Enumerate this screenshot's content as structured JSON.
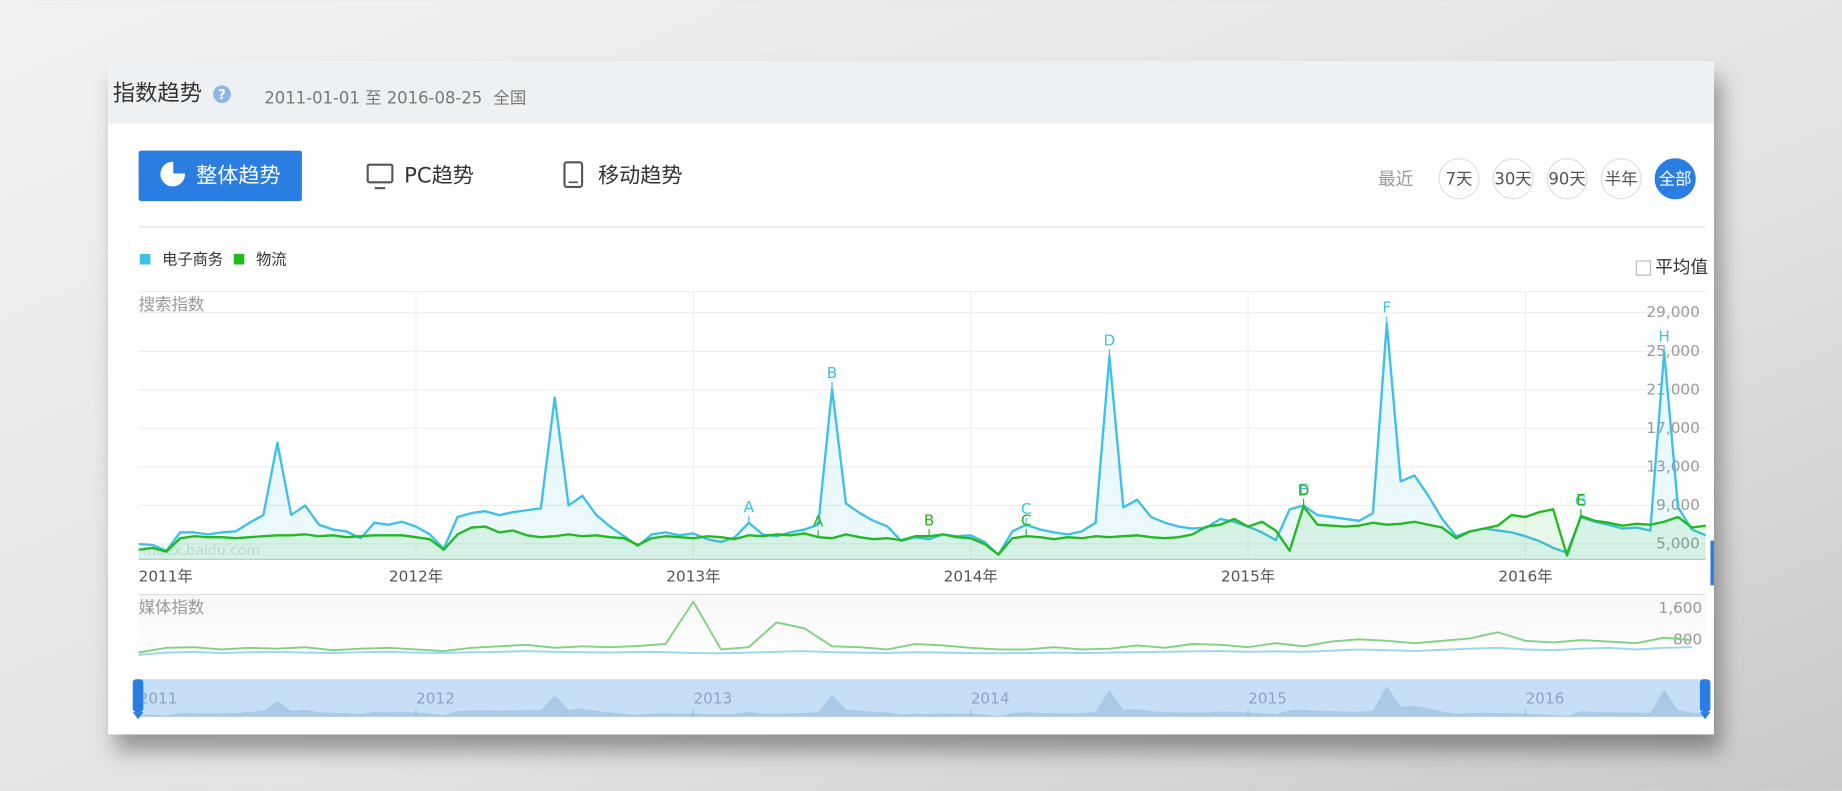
{
  "header": {
    "title": "指数趋势",
    "date_range": "2011-01-01 至 2016-08-25",
    "region": "全国"
  },
  "tabs": {
    "items": [
      "整体趋势",
      "PC趋势",
      "移动趋势"
    ],
    "active": 0
  },
  "range": {
    "label": "最近",
    "items": [
      "7天",
      "30天",
      "90天",
      "半年",
      "全部"
    ],
    "active": 4
  },
  "average_toggle": "平均值",
  "watermark": "index.baidu.com",
  "navigator": {
    "labels": [
      "2011",
      "2012",
      "2013",
      "2014",
      "2015",
      "2016"
    ]
  },
  "chart_data": [
    {
      "type": "line",
      "y_label": "搜索指数",
      "legend": "top-left",
      "grid": true,
      "x": [
        2011,
        2011.05,
        2011.1,
        2011.15,
        2011.2,
        2011.25,
        2011.3,
        2011.35,
        2011.4,
        2011.45,
        2011.5,
        2011.55,
        2011.6,
        2011.65,
        2011.7,
        2011.75,
        2011.8,
        2011.85,
        2011.9,
        2011.95,
        2012,
        2012.05,
        2012.1,
        2012.15,
        2012.2,
        2012.25,
        2012.3,
        2012.35,
        2012.4,
        2012.45,
        2012.5,
        2012.55,
        2012.6,
        2012.65,
        2012.7,
        2012.75,
        2012.8,
        2012.85,
        2012.9,
        2012.95,
        2013,
        2013.05,
        2013.1,
        2013.15,
        2013.2,
        2013.25,
        2013.3,
        2013.35,
        2013.4,
        2013.45,
        2013.5,
        2013.55,
        2013.6,
        2013.65,
        2013.7,
        2013.75,
        2013.8,
        2013.85,
        2013.9,
        2013.95,
        2014,
        2014.05,
        2014.1,
        2014.15,
        2014.2,
        2014.25,
        2014.3,
        2014.35,
        2014.4,
        2014.45,
        2014.5,
        2014.55,
        2014.6,
        2014.65,
        2014.7,
        2014.75,
        2014.8,
        2014.85,
        2014.9,
        2014.95,
        2015,
        2015.05,
        2015.1,
        2015.15,
        2015.2,
        2015.25,
        2015.3,
        2015.35,
        2015.4,
        2015.45,
        2015.5,
        2015.55,
        2015.6,
        2015.65,
        2015.7,
        2015.75,
        2015.8,
        2015.85,
        2015.9,
        2015.95,
        2016,
        2016.05,
        2016.1,
        2016.15,
        2016.2,
        2016.25,
        2016.3,
        2016.35,
        2016.4,
        2016.45,
        2016.5,
        2016.55,
        2016.6,
        2016.65
      ],
      "series": [
        {
          "name": "电子商务",
          "color": "#3ec0e8",
          "values": [
            5000,
            4900,
            4300,
            6200,
            6200,
            6000,
            6200,
            6300,
            7200,
            8000,
            15500,
            8000,
            9000,
            7000,
            6500,
            6300,
            5600,
            7200,
            7000,
            7300,
            6800,
            6000,
            4500,
            7800,
            8200,
            8400,
            8000,
            8300,
            8500,
            8700,
            20200,
            9000,
            10000,
            8000,
            6800,
            5800,
            4800,
            6000,
            6200,
            5900,
            6100,
            5500,
            5200,
            5700,
            7200,
            6000,
            5800,
            6200,
            6500,
            7000,
            21100,
            9200,
            8200,
            7400,
            6800,
            5300,
            5700,
            5500,
            6000,
            5800,
            5900,
            5200,
            3900,
            6300,
            7000,
            6500,
            6200,
            6000,
            6300,
            7200,
            24500,
            8800,
            9600,
            7800,
            7200,
            6800,
            6600,
            6700,
            7600,
            7300,
            6800,
            6200,
            5400,
            8600,
            9000,
            8000,
            7800,
            7600,
            7400,
            8200,
            27900,
            11500,
            12100,
            10000,
            7600,
            5800,
            6300,
            6600,
            6400,
            6200,
            5800,
            5300,
            4600,
            4100,
            7800,
            7300,
            7000,
            6600,
            6700,
            6400,
            24900,
            8800,
            6500,
            5900
          ],
          "annotations": [
            {
              "text": "A",
              "x": 2013.2
            },
            {
              "text": "B",
              "x": 2013.5
            },
            {
              "text": "C",
              "x": 2014.2
            },
            {
              "text": "D",
              "x": 2014.5
            },
            {
              "text": "E",
              "x": 2015.2
            },
            {
              "text": "F",
              "x": 2015.5
            },
            {
              "text": "G",
              "x": 2016.2
            },
            {
              "text": "H",
              "x": 2016.5
            }
          ]
        },
        {
          "name": "物流",
          "color": "#22b922",
          "values": [
            4400,
            4600,
            4200,
            5600,
            5800,
            5700,
            5700,
            5600,
            5700,
            5800,
            5900,
            5900,
            6000,
            5800,
            5900,
            5700,
            5800,
            5900,
            5900,
            5900,
            5700,
            5500,
            4400,
            6000,
            6700,
            6800,
            6200,
            6400,
            5900,
            5700,
            5800,
            6000,
            5800,
            5900,
            5700,
            5600,
            4900,
            5600,
            5800,
            5700,
            5600,
            5800,
            5700,
            5500,
            5900,
            5800,
            6000,
            5900,
            6100,
            5700,
            5600,
            6000,
            5700,
            5500,
            5600,
            5400,
            5800,
            5800,
            6000,
            5700,
            5600,
            5000,
            3900,
            5600,
            5800,
            5700,
            5500,
            5700,
            5600,
            5800,
            5700,
            5800,
            5900,
            5700,
            5600,
            5700,
            6000,
            6800,
            7000,
            7600,
            6800,
            7300,
            6400,
            4300,
            8900,
            7000,
            6900,
            6800,
            6900,
            7200,
            7000,
            7100,
            7300,
            7000,
            6700,
            5600,
            6300,
            6600,
            6900,
            8000,
            7800,
            8300,
            8600,
            3800,
            7900,
            7400,
            7200,
            6900,
            7100,
            7000,
            7300,
            7800,
            6700,
            6900
          ],
          "annotations": [
            {
              "text": "A",
              "x": 2013.45
            },
            {
              "text": "B",
              "x": 2013.85
            },
            {
              "text": "C",
              "x": 2014.2
            },
            {
              "text": "D",
              "x": 2015.2
            },
            {
              "text": "E",
              "x": 2016.2
            }
          ]
        }
      ],
      "xlim": [
        2011,
        2016.65
      ],
      "xticks": [
        {
          "value": 2011,
          "label": "2011年"
        },
        {
          "value": 2012,
          "label": "2012年"
        },
        {
          "value": 2013,
          "label": "2013年"
        },
        {
          "value": 2014,
          "label": "2014年"
        },
        {
          "value": 2015,
          "label": "2015年"
        },
        {
          "value": 2016,
          "label": "2016年"
        }
      ],
      "ylim": [
        3400,
        31200
      ],
      "yticks": [
        {
          "value": 5000,
          "label": "5,000"
        },
        {
          "value": 9000,
          "label": "9,000"
        },
        {
          "value": 13000,
          "label": "13,000"
        },
        {
          "value": 17000,
          "label": "17,000"
        },
        {
          "value": 21000,
          "label": "21,000"
        },
        {
          "value": 25000,
          "label": "25,000"
        },
        {
          "value": 29000,
          "label": "29,000"
        }
      ]
    },
    {
      "type": "line",
      "y_label": "媒体指数",
      "grid": false,
      "x": [
        2011,
        2011.1,
        2011.2,
        2011.3,
        2011.4,
        2011.5,
        2011.6,
        2011.7,
        2011.8,
        2011.9,
        2012,
        2012.1,
        2012.2,
        2012.3,
        2012.4,
        2012.5,
        2012.6,
        2012.7,
        2012.8,
        2012.9,
        2013,
        2013.1,
        2013.2,
        2013.3,
        2013.4,
        2013.5,
        2013.6,
        2013.7,
        2013.8,
        2013.9,
        2014,
        2014.1,
        2014.2,
        2014.3,
        2014.4,
        2014.5,
        2014.6,
        2014.7,
        2014.8,
        2014.9,
        2015,
        2015.1,
        2015.2,
        2015.3,
        2015.4,
        2015.5,
        2015.6,
        2015.7,
        2015.8,
        2015.9,
        2016,
        2016.1,
        2016.2,
        2016.3,
        2016.4,
        2016.5,
        2016.6
      ],
      "series": [
        {
          "color": "#9ad6f0",
          "values": [
            420,
            480,
            500,
            470,
            490,
            500,
            480,
            470,
            490,
            500,
            480,
            470,
            490,
            500,
            520,
            500,
            490,
            480,
            500,
            490,
            470,
            460,
            480,
            500,
            520,
            490,
            480,
            470,
            490,
            480,
            470,
            460,
            470,
            480,
            470,
            480,
            490,
            500,
            510,
            520,
            500,
            510,
            500,
            530,
            560,
            540,
            520,
            550,
            580,
            600,
            560,
            540,
            580,
            600,
            560,
            600,
            620
          ]
        },
        {
          "color": "#7fd27f",
          "values": [
            480,
            600,
            620,
            560,
            600,
            580,
            620,
            540,
            580,
            600,
            560,
            520,
            600,
            640,
            680,
            600,
            640,
            620,
            650,
            700,
            1780,
            560,
            620,
            1250,
            1100,
            640,
            620,
            560,
            700,
            660,
            600,
            560,
            560,
            620,
            560,
            580,
            660,
            600,
            700,
            680,
            620,
            720,
            640,
            760,
            820,
            780,
            720,
            780,
            840,
            1000,
            780,
            740,
            800,
            760,
            720,
            860,
            800
          ]
        }
      ],
      "xlim": [
        2011,
        2016.65
      ],
      "ylim": [
        250,
        1930
      ],
      "yticks": [
        800,
        {
          "value": 1600,
          "label": "1,600"
        }
      ]
    }
  ]
}
